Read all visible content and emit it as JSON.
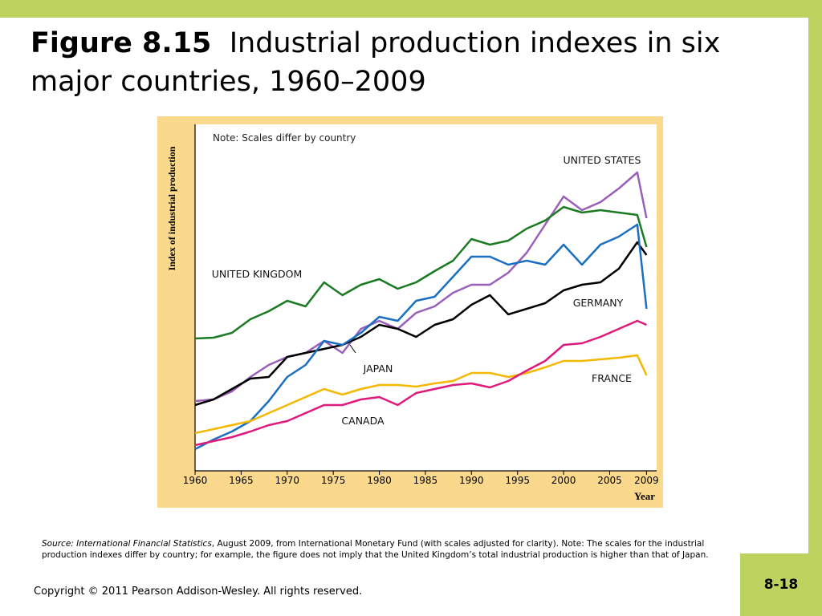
{
  "title_label": "Figure 8.15",
  "title_text": "Industrial production indexes in six major countries, 1960–2009",
  "source_italic": "Source: International Financial Statistics",
  "source_text": ", August 2009, from International Monetary Fund (with scales adjusted for clarity). Note: The scales for the industrial production indexes differ by country; for example, the figure does not imply that the United Kingdom’s total industrial production is higher than that of Japan.",
  "copyright": "Copyright © 2011 Pearson Addison-Wesley. All rights reserved.",
  "page_number": "8-18",
  "chart_data": {
    "type": "line",
    "annotation": "Note: Scales differ by country",
    "y_label": "Index of industrial production",
    "x_label": "Year",
    "x": [
      1960,
      1962,
      1964,
      1966,
      1968,
      1970,
      1972,
      1974,
      1976,
      1978,
      1980,
      1982,
      1984,
      1986,
      1988,
      1990,
      1992,
      1994,
      1996,
      1998,
      2000,
      2002,
      2004,
      2006,
      2008,
      2009
    ],
    "xlim": [
      1960,
      2010.1
    ],
    "xticks": [
      1960,
      1965,
      1970,
      1975,
      1980,
      1985,
      1990,
      1995,
      2000,
      2005,
      2009
    ],
    "ylim": [
      0,
      432
    ],
    "series": [
      {
        "name": "UNITED STATES",
        "color": "#9a5fb8",
        "values": [
          87,
          89,
          99,
          117,
          132,
          142,
          147,
          162,
          147,
          177,
          187,
          177,
          197,
          205,
          222,
          232,
          232,
          247,
          272,
          307,
          342,
          325,
          335,
          352,
          372,
          315
        ]
      },
      {
        "name": "UNITED KINGDOM",
        "color": "#1b7a22",
        "values": [
          165,
          166,
          172,
          189,
          199,
          212,
          205,
          235,
          219,
          232,
          239,
          227,
          235,
          249,
          262,
          289,
          282,
          287,
          302,
          312,
          329,
          322,
          325,
          322,
          319,
          279
        ]
      },
      {
        "name": "GERMANY",
        "color": "#000000",
        "values": [
          82,
          89,
          102,
          115,
          117,
          142,
          147,
          152,
          157,
          167,
          182,
          177,
          167,
          182,
          189,
          207,
          219,
          195,
          202,
          209,
          225,
          232,
          235,
          252,
          285,
          269
        ]
      },
      {
        "name": "JAPAN",
        "color": "#1a6fc0",
        "values": [
          27,
          39,
          49,
          62,
          87,
          117,
          132,
          162,
          157,
          172,
          192,
          187,
          212,
          217,
          242,
          267,
          267,
          257,
          262,
          257,
          282,
          257,
          282,
          292,
          307,
          202
        ]
      },
      {
        "name": "FRANCE",
        "color": "#f5b800",
        "values": [
          47,
          52,
          57,
          62,
          72,
          82,
          92,
          102,
          95,
          102,
          107,
          107,
          105,
          109,
          112,
          122,
          122,
          117,
          122,
          129,
          137,
          137,
          139,
          141,
          144,
          119
        ]
      },
      {
        "name": "CANADA",
        "color": "#e0197d",
        "values": [
          32,
          37,
          42,
          49,
          57,
          62,
          72,
          82,
          82,
          89,
          92,
          82,
          97,
          102,
          107,
          109,
          104,
          112,
          125,
          137,
          157,
          159,
          167,
          177,
          187,
          182
        ]
      }
    ]
  }
}
